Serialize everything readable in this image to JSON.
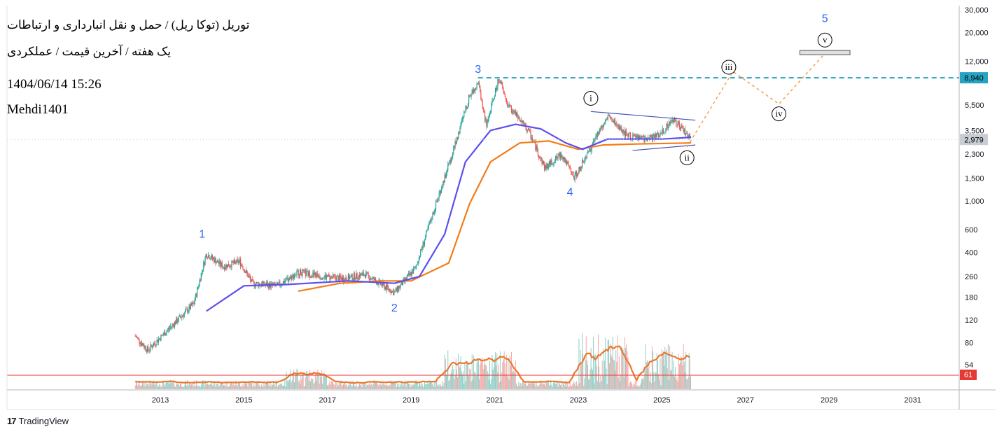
{
  "header": {
    "title": "توریل (توکا ریل) / حمل و نقل انبارداری و ارتباطات",
    "subtitle": "یک هفته / آخرین قیمت / عملکردی",
    "datetime": "1404/06/14 15:26",
    "author": "Mehdi1401"
  },
  "branding": {
    "logo_mark": "17",
    "logo_text": "TradingView",
    "logo_icon": "tradingview-logo-icon"
  },
  "colors": {
    "up": "#26a69a",
    "down": "#ef5350",
    "ma_fast": "#5b4ff0",
    "ma_slow": "#f57c16",
    "volume_ma": "#e8792f",
    "target_line": "#26a3c3",
    "wave_label": "#2962ff",
    "projection": "#f7a04a",
    "channel": "#3f51b5",
    "current_price": "#c8ccd4",
    "rsi_level_line": "#e53935"
  },
  "chart_data": {
    "type": "candlestick",
    "scale": "log",
    "ylim": [
      40,
      30000
    ],
    "x_ticks": [
      "2013",
      "2015",
      "2017",
      "2019",
      "2021",
      "2023",
      "2025",
      "2027",
      "2029",
      "2031"
    ],
    "y_ticks": [
      "30,000",
      "20,000",
      "12,000",
      "5,500",
      "3,500",
      "2,300",
      "1,500",
      "1,000",
      "600",
      "400",
      "260",
      "180",
      "120",
      "80",
      "54"
    ],
    "price_anchors": [
      {
        "x": 2012.4,
        "y": 90
      },
      {
        "x": 2012.7,
        "y": 70
      },
      {
        "x": 2013.3,
        "y": 110
      },
      {
        "x": 2013.8,
        "y": 160
      },
      {
        "x": 2014.1,
        "y": 390
      },
      {
        "x": 2014.5,
        "y": 310
      },
      {
        "x": 2014.9,
        "y": 340
      },
      {
        "x": 2015.2,
        "y": 230
      },
      {
        "x": 2015.8,
        "y": 220
      },
      {
        "x": 2016.3,
        "y": 280
      },
      {
        "x": 2016.9,
        "y": 260
      },
      {
        "x": 2017.4,
        "y": 250
      },
      {
        "x": 2017.9,
        "y": 270
      },
      {
        "x": 2018.6,
        "y": 195
      },
      {
        "x": 2019.1,
        "y": 300
      },
      {
        "x": 2019.7,
        "y": 1200
      },
      {
        "x": 2020.0,
        "y": 2400
      },
      {
        "x": 2020.4,
        "y": 6500
      },
      {
        "x": 2020.6,
        "y": 8400
      },
      {
        "x": 2020.8,
        "y": 3800
      },
      {
        "x": 2021.1,
        "y": 8940
      },
      {
        "x": 2021.3,
        "y": 5600
      },
      {
        "x": 2021.8,
        "y": 3500
      },
      {
        "x": 2022.2,
        "y": 1800
      },
      {
        "x": 2022.6,
        "y": 2300
      },
      {
        "x": 2022.9,
        "y": 1500
      },
      {
        "x": 2023.3,
        "y": 2600
      },
      {
        "x": 2023.7,
        "y": 4600
      },
      {
        "x": 2024.1,
        "y": 3300
      },
      {
        "x": 2024.5,
        "y": 3000
      },
      {
        "x": 2024.9,
        "y": 3200
      },
      {
        "x": 2025.3,
        "y": 4300
      },
      {
        "x": 2025.7,
        "y": 2979
      }
    ],
    "ma_fast": [
      {
        "x": 2014.1,
        "y": 140
      },
      {
        "x": 2015.0,
        "y": 220
      },
      {
        "x": 2016.0,
        "y": 225
      },
      {
        "x": 2017.5,
        "y": 240
      },
      {
        "x": 2018.6,
        "y": 230
      },
      {
        "x": 2019.2,
        "y": 260
      },
      {
        "x": 2019.8,
        "y": 550
      },
      {
        "x": 2020.3,
        "y": 2000
      },
      {
        "x": 2020.9,
        "y": 3500
      },
      {
        "x": 2021.5,
        "y": 3900
      },
      {
        "x": 2022.1,
        "y": 3600
      },
      {
        "x": 2022.7,
        "y": 2800
      },
      {
        "x": 2023.1,
        "y": 2500
      },
      {
        "x": 2023.7,
        "y": 3000
      },
      {
        "x": 2024.4,
        "y": 3000
      },
      {
        "x": 2025.0,
        "y": 3000
      },
      {
        "x": 2025.7,
        "y": 3100
      }
    ],
    "ma_slow": [
      {
        "x": 2016.3,
        "y": 200
      },
      {
        "x": 2017.3,
        "y": 230
      },
      {
        "x": 2018.3,
        "y": 240
      },
      {
        "x": 2019.0,
        "y": 240
      },
      {
        "x": 2019.9,
        "y": 330
      },
      {
        "x": 2020.4,
        "y": 950
      },
      {
        "x": 2020.9,
        "y": 2000
      },
      {
        "x": 2021.6,
        "y": 2800
      },
      {
        "x": 2022.3,
        "y": 2900
      },
      {
        "x": 2023.0,
        "y": 2500
      },
      {
        "x": 2023.6,
        "y": 2700
      },
      {
        "x": 2024.4,
        "y": 2750
      },
      {
        "x": 2025.7,
        "y": 2800
      }
    ],
    "waves": [
      {
        "label": "1",
        "x": 2014.0,
        "y": 560,
        "style": "plain"
      },
      {
        "label": "2",
        "x": 2018.6,
        "y": 150,
        "style": "plain"
      },
      {
        "label": "3",
        "x": 2020.6,
        "y": 10500,
        "style": "plain"
      },
      {
        "label": "4",
        "x": 2022.8,
        "y": 1180,
        "style": "plain"
      },
      {
        "label": "5",
        "x": 2028.9,
        "y": 26000,
        "style": "plain"
      },
      {
        "label": "i",
        "x": 2023.3,
        "y": 6200,
        "style": "circle"
      },
      {
        "label": "ii",
        "x": 2025.6,
        "y": 2150,
        "style": "circle"
      },
      {
        "label": "iii",
        "x": 2026.6,
        "y": 10800,
        "style": "circle"
      },
      {
        "label": "iv",
        "x": 2027.8,
        "y": 4700,
        "style": "circle"
      },
      {
        "label": "v",
        "x": 2028.9,
        "y": 17500,
        "style": "circle"
      }
    ],
    "projection_path": [
      {
        "x": 2025.6,
        "y": 2600
      },
      {
        "x": 2026.7,
        "y": 10000
      },
      {
        "x": 2027.8,
        "y": 5600
      },
      {
        "x": 2028.9,
        "y": 13800
      }
    ],
    "channel_upper": [
      {
        "x": 2023.3,
        "y": 4900
      },
      {
        "x": 2025.8,
        "y": 4200
      }
    ],
    "channel_lower": [
      {
        "x": 2024.3,
        "y": 2450
      },
      {
        "x": 2025.8,
        "y": 2700
      }
    ],
    "target_level": 8940,
    "target_label": "8,940",
    "current_price": 2979,
    "current_label": "2,979",
    "target_box": {
      "x0": 2028.3,
      "x1": 2029.5,
      "y": 14000
    },
    "volume_indicator_value": 61,
    "volume_indicator_label": "61"
  }
}
